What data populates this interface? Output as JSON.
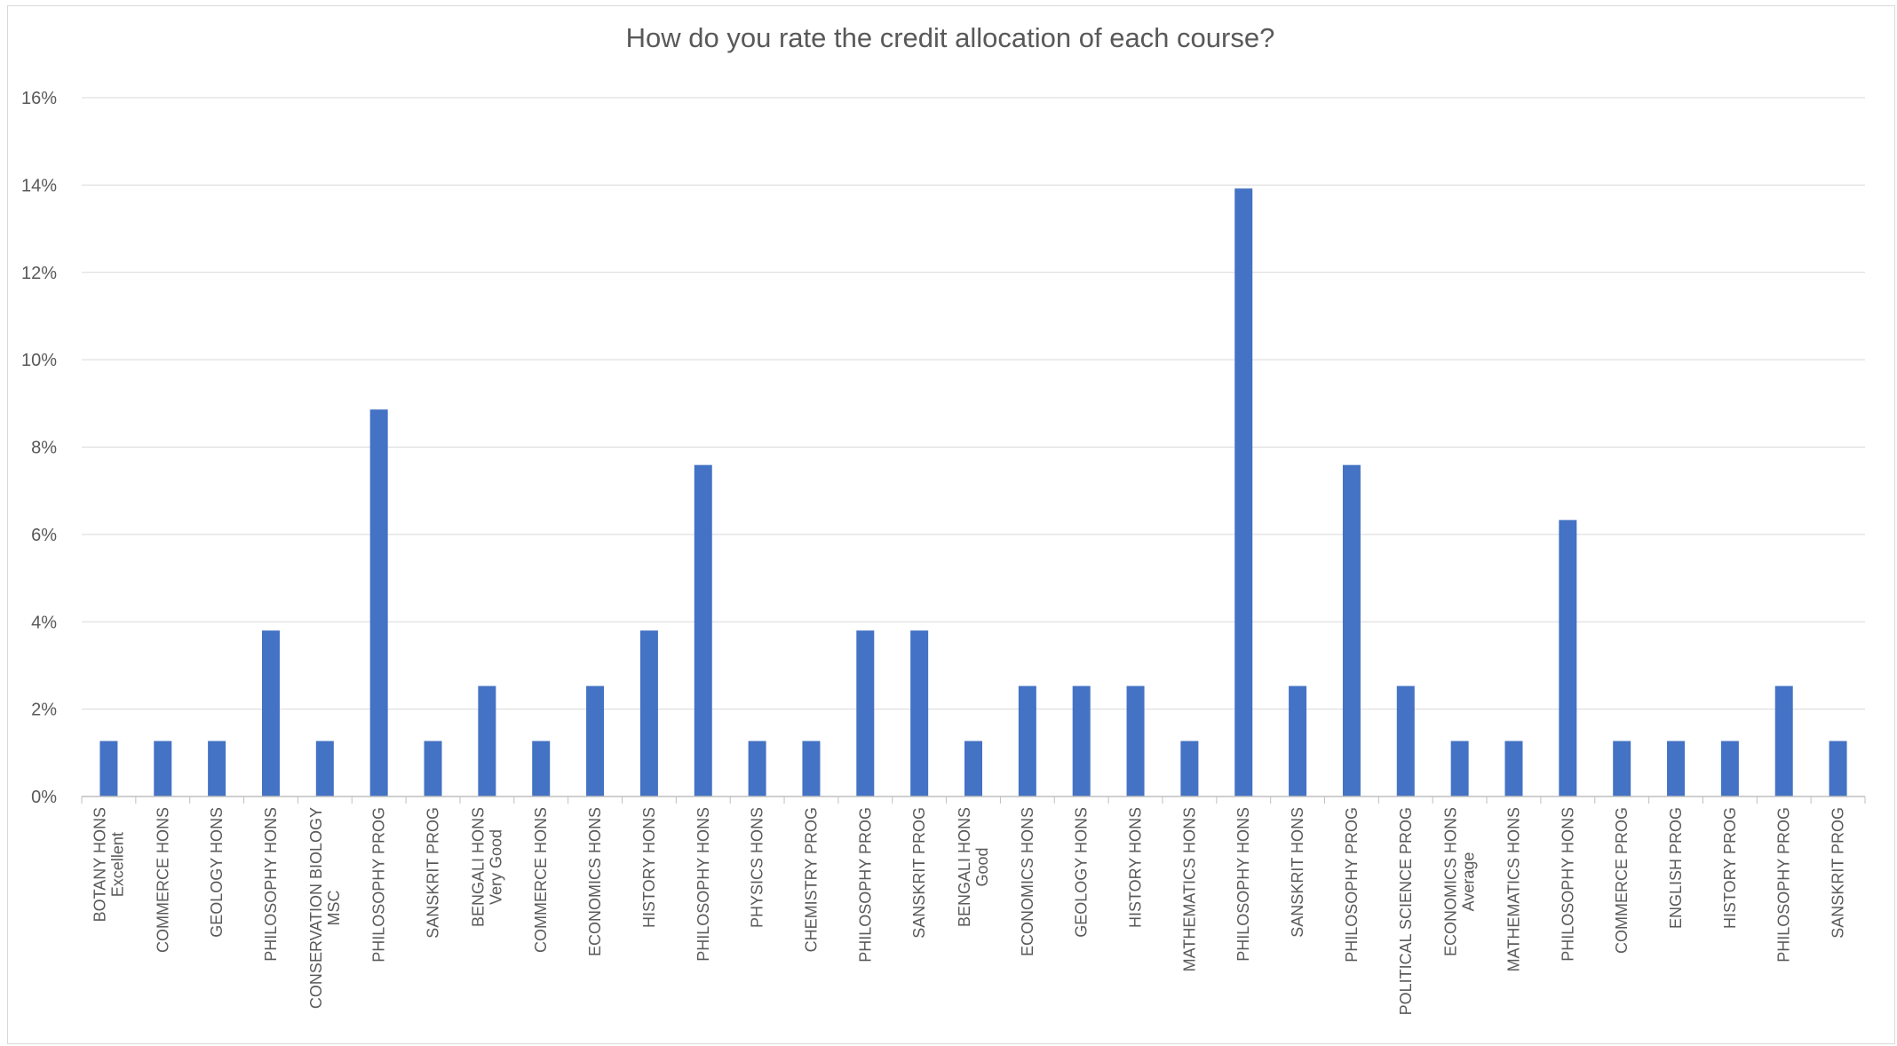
{
  "chart_data": {
    "type": "bar",
    "title": "How do you rate the credit allocation of each course?",
    "xlabel": "",
    "ylabel": "",
    "ylim": [
      0,
      16
    ],
    "y_tick_labels": [
      "0%",
      "2%",
      "4%",
      "6%",
      "8%",
      "10%",
      "12%",
      "14%",
      "16%"
    ],
    "y_ticks": [
      0,
      2,
      4,
      6,
      8,
      10,
      12,
      14,
      16
    ],
    "grid": true,
    "legend": "none",
    "bar_color": "#4472c4",
    "categories": [
      {
        "label": "BOTANY HONS",
        "group": "Excellent"
      },
      {
        "label": "COMMERCE HONS",
        "group": ""
      },
      {
        "label": "GEOLOGY HONS",
        "group": ""
      },
      {
        "label": "PHILOSOPHY HONS",
        "group": ""
      },
      {
        "label": "CONSERVATION BIOLOGY",
        "group": "MSC"
      },
      {
        "label": "PHILOSOPHY PROG",
        "group": ""
      },
      {
        "label": "SANSKRIT PROG",
        "group": ""
      },
      {
        "label": "BENGALI HONS",
        "group": "Very Good"
      },
      {
        "label": "COMMERCE HONS",
        "group": ""
      },
      {
        "label": "ECONOMICS HONS",
        "group": ""
      },
      {
        "label": "HISTORY HONS",
        "group": ""
      },
      {
        "label": "PHILOSOPHY HONS",
        "group": ""
      },
      {
        "label": "PHYSICS HONS",
        "group": ""
      },
      {
        "label": "CHEMISTRY PROG",
        "group": ""
      },
      {
        "label": "PHILOSOPHY PROG",
        "group": ""
      },
      {
        "label": "SANSKRIT PROG",
        "group": ""
      },
      {
        "label": "BENGALI HONS",
        "group": "Good"
      },
      {
        "label": "ECONOMICS HONS",
        "group": ""
      },
      {
        "label": "GEOLOGY HONS",
        "group": ""
      },
      {
        "label": "HISTORY HONS",
        "group": ""
      },
      {
        "label": "MATHEMATICS HONS",
        "group": ""
      },
      {
        "label": "PHILOSOPHY HONS",
        "group": ""
      },
      {
        "label": "SANSKRIT HONS",
        "group": ""
      },
      {
        "label": "PHILOSOPHY PROG",
        "group": ""
      },
      {
        "label": "POLITICAL SCIENCE PROG",
        "group": ""
      },
      {
        "label": "ECONOMICS HONS",
        "group": "Average"
      },
      {
        "label": "MATHEMATICS HONS",
        "group": ""
      },
      {
        "label": "PHILOSOPHY HONS",
        "group": ""
      },
      {
        "label": "COMMERCE PROG",
        "group": ""
      },
      {
        "label": "ENGLISH PROG",
        "group": ""
      },
      {
        "label": "HISTORY PROG",
        "group": ""
      },
      {
        "label": "PHILOSOPHY PROG",
        "group": ""
      },
      {
        "label": "SANSKRIT PROG",
        "group": ""
      }
    ],
    "values": [
      1.27,
      1.27,
      1.27,
      3.8,
      1.27,
      8.86,
      1.27,
      2.53,
      1.27,
      2.53,
      3.8,
      7.59,
      1.27,
      1.27,
      3.8,
      3.8,
      1.27,
      2.53,
      2.53,
      2.53,
      1.27,
      13.92,
      2.53,
      7.59,
      2.53,
      1.27,
      1.27,
      6.33,
      1.27,
      1.27,
      1.27,
      2.53,
      1.27
    ]
  }
}
